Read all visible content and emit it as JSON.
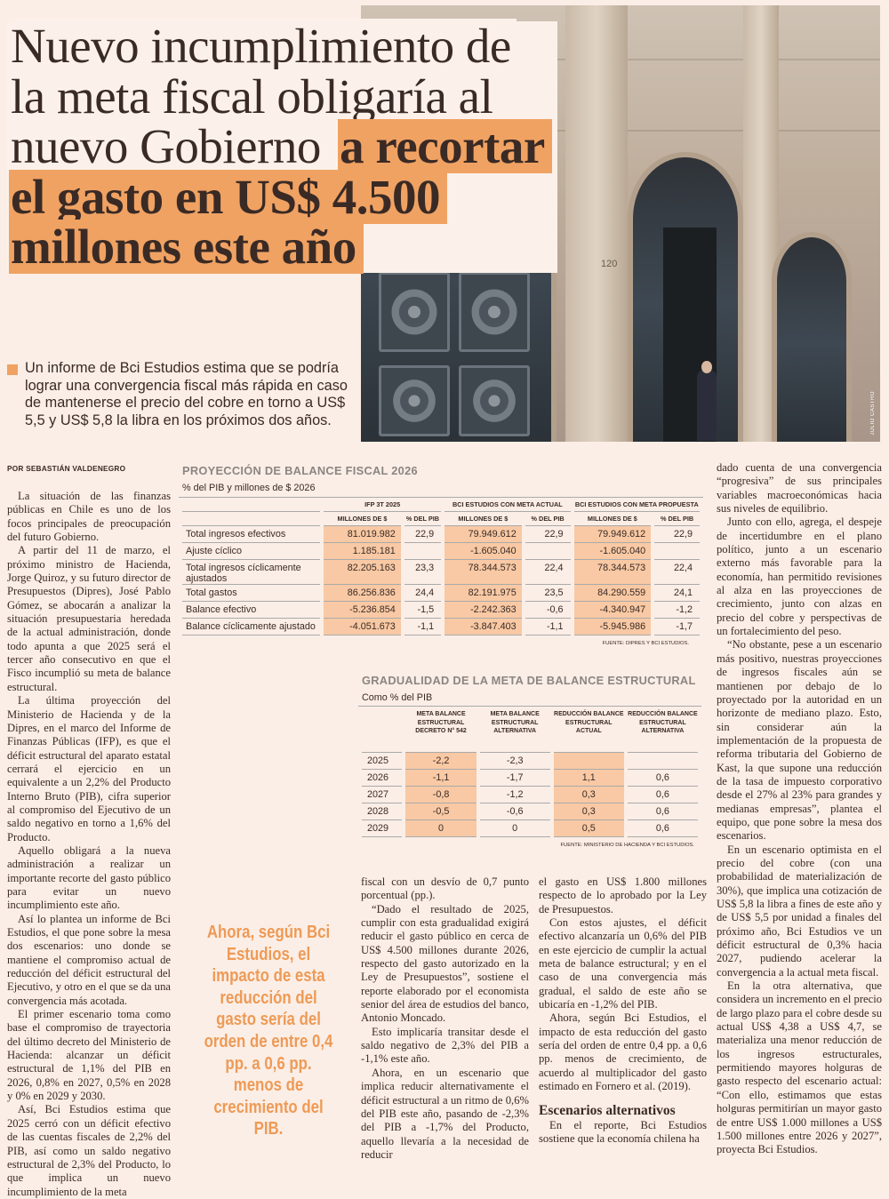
{
  "headline": {
    "line1": "Nuevo incumplimiento de",
    "line2": "la meta fiscal obligaría al",
    "line3_plain": "nuevo Gobierno",
    "line3_bold": "a recortar",
    "line4": "el gasto en US$ 4.500",
    "line5": "millones este año"
  },
  "photo_credit": "JULIO CASTRO",
  "deck": "Un informe de Bci Estudios estima que se podría lograr una convergencia fiscal más rápida en caso de mantenerse el precio del cobre en torno a US$ 5,5 y US$ 5,8 la libra en los próximos dos años.",
  "byline": "POR SEBASTIÁN VALDENEGRO",
  "col1": [
    "La situación de las finanzas públicas en Chile es uno de los focos principales de preocupación del futuro Gobierno.",
    "A partir del 11 de marzo, el próximo ministro de Hacienda, Jorge Quiroz, y su futuro director de Presupuestos (Dipres), José Pablo Gómez, se abocarán a analizar la situación presupuestaria heredada de la actual administración, donde todo apunta a que 2025 será el tercer año consecutivo en que el Fisco incumplió su meta de balance estructural.",
    "La última proyección del Ministerio de Hacienda y de la Dipres, en el marco del Informe de Finanzas Públicas (IFP), es que el déficit estructural del aparato estatal cerrará el ejercicio en un equivalente a un 2,2% del Producto Interno Bruto (PIB), cifra superior al compromiso del Ejecutivo de un saldo negativo en torno a 1,6% del Producto.",
    "Aquello obligará a la nueva administración a realizar un importante recorte del gasto público para evitar un nuevo incumplimiento este año.",
    "Así lo plantea un informe de Bci Estudios, el que pone sobre la mesa dos escenarios: uno donde se mantiene el compromiso actual de reducción del déficit estructural del Ejecutivo, y otro en el que se da una convergencia más acotada.",
    "El primer escenario toma como base el compromiso de trayectoria del último decreto del Ministerio de Hacienda: alcanzar un déficit estructural de 1,1% del PIB en 2026, 0,8% en 2027, 0,5% en 2028 y 0% en 2029 y 2030.",
    "Así, Bci Estudios estima que 2025 cerró con un déficit efectivo de las cuentas fiscales de 2,2% del PIB, así como un saldo negativo estructural de 2,3% del Producto, lo que implica un nuevo incumplimiento de la meta"
  ],
  "col2": [
    "fiscal con un desvío de 0,7 punto porcentual (pp.).",
    "“Dado el resultado de 2025, cumplir con esta gradualidad exigirá reducir el gasto público en cerca de US$ 4.500 millones durante 2026, respecto del gasto autorizado en la Ley de Presupuestos”, sostiene el reporte elaborado por el economista senior del área de estudios del banco, Antonio Moncado.",
    "Esto implicaría transitar desde el saldo negativo de 2,3% del PIB a -1,1% este año.",
    "Ahora, en un escenario que implica reducir alternativamente el déficit estructural a un ritmo de 0,6% del PIB este año, pasando de -2,3% del PIB a -1,7% del Producto, aquello llevaría a la necesidad de reducir"
  ],
  "col3": [
    "el gasto en US$ 1.800 millones respecto de lo aprobado por la Ley de Presupuestos.",
    "Con estos ajustes, el déficit efectivo alcanzaría un 0,6% del PIB en este ejercicio de cumplir la actual meta de balance estructural; y en el caso de una convergencia más gradual, el saldo de este año se ubicaría en -1,2% del PIB.",
    "Ahora, según Bci Estudios, el impacto de esta reducción del gasto sería del orden de entre 0,4 pp. a 0,6 pp. menos de crecimiento, de acuerdo al multiplicador del gasto estimado en Fornero et al. (2019)."
  ],
  "col3_heading": "Escenarios alternativos",
  "col3_after": [
    "En el reporte, Bci Estudios sostiene que la economía chilena ha"
  ],
  "col4": [
    "dado cuenta de una convergencia “progresiva” de sus principales variables macroeconómicas hacia sus niveles de equilibrio.",
    "Junto con ello, agrega, el despeje de incertidumbre en el plano político, junto a un escenario externo más favorable para la economía, han permitido revisiones al alza en las proyecciones de crecimiento, junto con alzas en precio del cobre y perspectivas de un fortalecimiento del peso.",
    "“No obstante, pese a un escenario más positivo, nuestras proyecciones de ingresos fiscales aún se mantienen por debajo de lo proyectado por la autoridad en un horizonte de mediano plazo. Esto, sin considerar aún la implementación de la propuesta de reforma tributaria del Gobierno de Kast, la que supone una reducción de la tasa de impuesto corporativo desde el 27% al 23% para grandes y medianas empresas”, plantea el equipo, que pone sobre la mesa dos escenarios.",
    "En un escenario optimista en el precio del cobre (con una probabilidad de materialización de 30%), que implica una cotización de US$ 5,8 la libra a fines de este año y de US$ 5,5 por unidad a finales del próximo año, Bci Estudios ve un déficit estructural de 0,3% hacia 2027, pudiendo acelerar la convergencia a la actual meta fiscal.",
    "En la otra alternativa, que considera un incremento en el precio de largo plazo para el cobre desde su actual US$ 4,38 a US$ 4,7, se materializa una menor reducción de los ingresos estructurales, permitiendo mayores holguras de gasto respecto del escenario actual: “Con ello, estimamos que estas holguras permitirían un mayor gasto de entre US$ 1.000 millones a US$ 1.500 millones entre 2026 y 2027”, proyecta Bci Estudios."
  ],
  "pull_quote": "Ahora, según Bci Estudios, el impacto de esta reducción del gasto sería del orden de entre 0,4 pp. a 0,6 pp. menos de crecimiento del PIB.",
  "table1": {
    "title": "PROYECCIÓN DE BALANCE FISCAL 2026",
    "subtitle": "% del PIB y millones de $ 2026",
    "groups": [
      "IFP 3T 2025",
      "BCI ESTUDIOS CON META ACTUAL",
      "BCI ESTUDIOS CON META PROPUESTA"
    ],
    "subheaders": [
      "MILLONES DE $",
      "% DEL PIB",
      "MILLONES DE $",
      "% DEL PIB",
      "MILLONES DE $",
      "% DEL PIB"
    ],
    "rows": [
      {
        "label": "Total ingresos efectivos",
        "values": [
          "81.019.982",
          "22,9",
          "79.949.612",
          "22,9",
          "79.949.612",
          "22,9"
        ]
      },
      {
        "label": "Ajuste cíclico",
        "values": [
          "1.185.181",
          "",
          "-1.605.040",
          "",
          "-1.605.040",
          ""
        ]
      },
      {
        "label": "Total ingresos cíclicamente ajustados",
        "values": [
          "82.205.163",
          "23,3",
          "78.344.573",
          "22,4",
          "78.344.573",
          "22,4"
        ]
      },
      {
        "label": "Total gastos",
        "values": [
          "86.256.836",
          "24,4",
          "82.191.975",
          "23,5",
          "84.290.559",
          "24,1"
        ]
      },
      {
        "label": "Balance efectivo",
        "values": [
          "-5.236.854",
          "-1,5",
          "-2.242.363",
          "-0,6",
          "-4.340.947",
          "-1,2"
        ]
      },
      {
        "label": "Balance cíclicamente ajustado",
        "values": [
          "-4.051.673",
          "-1,1",
          "-3.847.403",
          "-1,1",
          "-5.945.986",
          "-1,7"
        ]
      }
    ],
    "source": "FUENTE: DIPRES Y BCI ESTUDIOS."
  },
  "table2": {
    "title": "GRADUALIDAD DE LA META DE BALANCE ESTRUCTURAL",
    "subtitle": "Como % del PIB",
    "headers": [
      "META BALANCE ESTRUCTURAL DECRETO N° 542",
      "META BALANCE ESTRUCTURAL ALTERNATIVA",
      "REDUCCIÓN BALANCE ESTRUCTURAL ACTUAL",
      "REDUCCIÓN BALANCE ESTRUCTURAL ALTERNATIVA"
    ],
    "rows": [
      {
        "year": "2025",
        "values": [
          "-2,2",
          "-2,3",
          "",
          ""
        ]
      },
      {
        "year": "2026",
        "values": [
          "-1,1",
          "-1,7",
          "1,1",
          "0,6"
        ]
      },
      {
        "year": "2027",
        "values": [
          "-0,8",
          "-1,2",
          "0,3",
          "0,6"
        ]
      },
      {
        "year": "2028",
        "values": [
          "-0,5",
          "-0,6",
          "0,3",
          "0,6"
        ]
      },
      {
        "year": "2029",
        "values": [
          "0",
          "0",
          "0,5",
          "0,6"
        ]
      }
    ],
    "source": "FUENTE: MINISTERIO DE HACIENDA Y BCI ESTUDIOS."
  },
  "colors": {
    "accent": "#f0a263",
    "shade": "#f8c9a4",
    "pull": "#ee9a56",
    "background": "#fbeee6"
  }
}
